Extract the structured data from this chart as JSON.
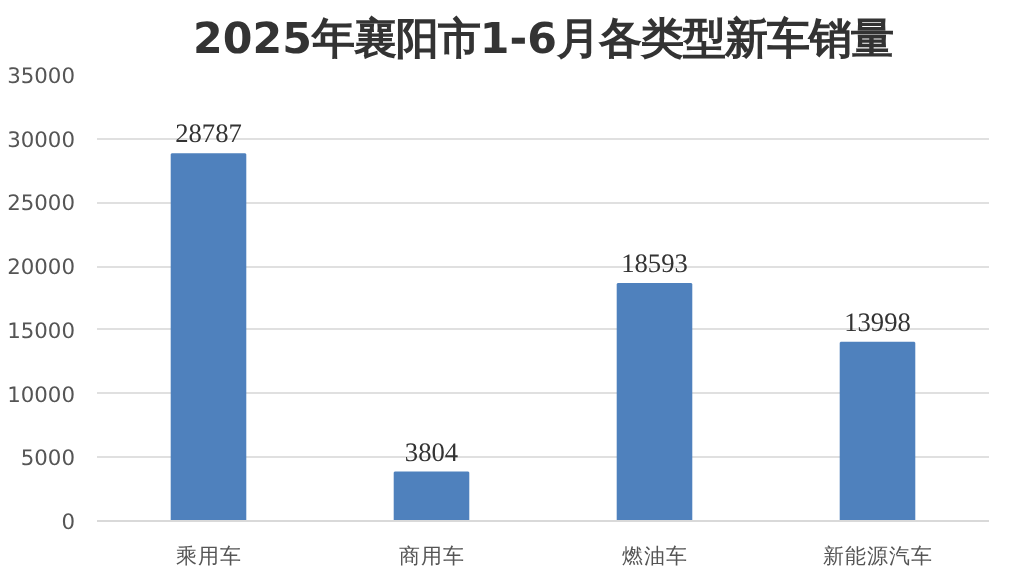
{
  "chart_data": {
    "type": "bar",
    "title": "2025年襄阳市1-6月各类型新车销量",
    "categories": [
      "乘用车",
      "商用车",
      "燃油车",
      "新能源汽车"
    ],
    "values": [
      28787,
      3804,
      18593,
      13998
    ],
    "color": "#4f81bd",
    "ylim": [
      0,
      35000
    ],
    "yticks": [
      0,
      5000,
      10000,
      15000,
      20000,
      25000,
      30000,
      35000
    ],
    "grid": "y",
    "data_labels": true
  }
}
